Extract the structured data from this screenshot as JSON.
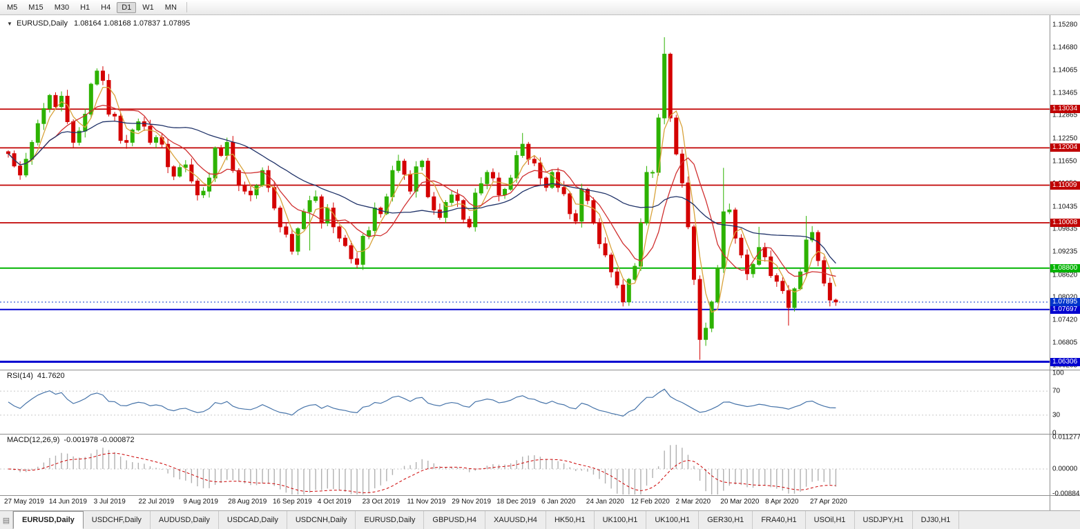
{
  "toolbar": {
    "timeframes": [
      "M5",
      "M15",
      "M30",
      "H1",
      "H4",
      "D1",
      "W1",
      "MN"
    ],
    "active": "D1"
  },
  "main_chart": {
    "collapse_icon": "▼",
    "symbol": "EURUSD,Daily",
    "ohlc": "1.08164 1.08168 1.07837 1.07895"
  },
  "price_axis": {
    "labels": [
      "1.15280",
      "1.14680",
      "1.14065",
      "1.13465",
      "1.12865",
      "1.12250",
      "1.11650",
      "1.11050",
      "1.10435",
      "1.09835",
      "1.09235",
      "1.08620",
      "1.08020",
      "1.07420",
      "1.06805",
      "1.06205"
    ]
  },
  "levels": [
    {
      "label": "1.13034",
      "value": 1.13034,
      "color": "#C00000",
      "width": 1.8
    },
    {
      "label": "1.12004",
      "value": 1.12004,
      "color": "#C00000",
      "width": 1.8
    },
    {
      "label": "1.11009",
      "value": 1.11009,
      "color": "#C00000",
      "width": 1.8
    },
    {
      "label": "1.10008",
      "value": 1.10008,
      "color": "#C00000",
      "width": 1.8
    },
    {
      "label": "1.08800",
      "value": 1.088,
      "color": "#00B400",
      "width": 2
    },
    {
      "label": "1.07697",
      "value": 1.07697,
      "color": "#0000D0",
      "width": 2
    },
    {
      "label": "1.06306",
      "value": 1.06306,
      "color": "#0000D0",
      "width": 3
    }
  ],
  "current_price": {
    "label": "1.07895",
    "value": 1.07895,
    "color": "#0033CC"
  },
  "rsi_panel": {
    "name": "RSI(14)",
    "value": "41.7620",
    "axis_labels": [
      "100",
      "70",
      "30",
      "0"
    ],
    "guide_levels": [
      70,
      30
    ],
    "line_color": "#4472A8"
  },
  "macd_panel": {
    "name": "MACD(12,26,9)",
    "values": "-0.001978 -0.000872",
    "axis_labels": [
      "0.011277",
      "0.00000",
      "-0.008845"
    ],
    "hist_color": "#B0B0B0",
    "signal_color": "#CC0000"
  },
  "time_axis": {
    "labels": [
      "27 May 2019",
      "14 Jun 2019",
      "3 Jul 2019",
      "22 Jul 2019",
      "9 Aug 2019",
      "28 Aug 2019",
      "16 Sep 2019",
      "4 Oct 2019",
      "23 Oct 2019",
      "11 Nov 2019",
      "29 Nov 2019",
      "18 Dec 2019",
      "6 Jan 2020",
      "24 Jan 2020",
      "12 Feb 2020",
      "2 Mar 2020",
      "20 Mar 2020",
      "8 Apr 2020",
      "27 Apr 2020"
    ]
  },
  "tabs": [
    {
      "label": "EURUSD,Daily",
      "active": true
    },
    {
      "label": "USDCHF,Daily",
      "active": false
    },
    {
      "label": "AUDUSD,Daily",
      "active": false
    },
    {
      "label": "USDCAD,Daily",
      "active": false
    },
    {
      "label": "USDCNH,Daily",
      "active": false
    },
    {
      "label": "EURUSD,Daily",
      "active": false
    },
    {
      "label": "GBPUSD,H4",
      "active": false
    },
    {
      "label": "XAUUSD,H4",
      "active": false
    },
    {
      "label": "HK50,H1",
      "active": false
    },
    {
      "label": "UK100,H1",
      "active": false
    },
    {
      "label": "UK100,H1",
      "active": false
    },
    {
      "label": "GER30,H1",
      "active": false
    },
    {
      "label": "FRA40,H1",
      "active": false
    },
    {
      "label": "USOil,H1",
      "active": false
    },
    {
      "label": "USDJPY,H1",
      "active": false
    },
    {
      "label": "DJ30,H1",
      "active": false
    }
  ],
  "icons": {
    "tab_list": "▤"
  },
  "chart_data": {
    "type": "candlestick",
    "symbol": "EURUSD",
    "timeframe": "Daily",
    "title": "EURUSD,Daily",
    "current_ohlc": {
      "open": 1.08164,
      "high": 1.08168,
      "low": 1.07837,
      "close": 1.07895
    },
    "x_range": [
      "27 May 2019",
      "7 May 2020"
    ],
    "y_axis_range": [
      1.06205,
      1.1528
    ],
    "grid": false,
    "first_open": 1.119,
    "closes": [
      1.1185,
      1.1152,
      1.1128,
      1.117,
      1.1215,
      1.1265,
      1.1305,
      1.134,
      1.131,
      1.1338,
      1.127,
      1.1215,
      1.1245,
      1.129,
      1.137,
      1.1405,
      1.138,
      1.129,
      1.1285,
      1.122,
      1.1215,
      1.1248,
      1.127,
      1.1258,
      1.1215,
      1.1228,
      1.121,
      1.115,
      1.1125,
      1.1148,
      1.1155,
      1.1112,
      1.1075,
      1.1085,
      1.112,
      1.12,
      1.118,
      1.1215,
      1.114,
      1.11,
      1.1085,
      1.1075,
      1.11,
      1.114,
      1.1095,
      1.104,
      1.099,
      1.097,
      1.0925,
      1.0985,
      1.103,
      1.106,
      1.107,
      1.1,
      1.104,
      1.099,
      1.096,
      1.094,
      1.0905,
      1.089,
      1.0965,
      1.098,
      1.104,
      1.1025,
      1.107,
      1.114,
      1.1165,
      1.113,
      1.1085,
      1.115,
      1.1165,
      1.107,
      1.1035,
      1.1015,
      1.1055,
      1.1075,
      1.106,
      1.101,
      1.099,
      1.108,
      1.1105,
      1.1135,
      1.112,
      1.1075,
      1.109,
      1.112,
      1.118,
      1.121,
      1.117,
      1.116,
      1.112,
      1.1095,
      1.1135,
      1.1095,
      1.1078,
      1.1025,
      1.1005,
      1.109,
      1.106,
      1.1,
      1.0945,
      1.0915,
      1.087,
      1.0835,
      1.079,
      1.085,
      1.0885,
      1.1,
      1.1135,
      1.1135,
      1.128,
      1.145,
      1.128,
      1.1184,
      1.1107,
      1.099,
      1.085,
      1.069,
      1.072,
      1.079,
      1.088,
      1.103,
      1.1035,
      1.096,
      1.0915,
      1.0865,
      1.089,
      1.0935,
      1.091,
      1.086,
      1.0845,
      1.082,
      1.0775,
      1.0825,
      1.087,
      1.0955,
      1.0975,
      1.09,
      1.084,
      1.0795,
      1.079
    ],
    "wick_overrides": {
      "15": {
        "high": 1.1412
      },
      "48": {
        "low": 1.0916
      },
      "51": {
        "low": 1.0927
      },
      "59": {
        "low": 1.0879
      },
      "87": {
        "high": 1.124
      },
      "104": {
        "low": 1.0778
      },
      "111": {
        "high": 1.1495
      },
      "117": {
        "low": 1.0636
      },
      "121": {
        "high": 1.1147
      },
      "127": {
        "high": 1.099
      },
      "132": {
        "low": 1.0727
      },
      "135": {
        "high": 1.1019
      }
    },
    "bull_color": "#2DB200",
    "bear_color": "#D40000",
    "moving_averages": [
      {
        "period": 4,
        "color": "#D8A23A"
      },
      {
        "period": 9,
        "color": "#D03030"
      },
      {
        "period": 28,
        "color": "#1F3268"
      }
    ],
    "rsi": {
      "period": 14,
      "current": 41.762
    },
    "macd": {
      "fast": 12,
      "slow": 26,
      "signal": 9,
      "macd_current": -0.001978,
      "signal_current": -0.000872,
      "axis_max": 0.011277,
      "axis_min": -0.008845
    },
    "horizontal_levels": [
      1.13034,
      1.12004,
      1.11009,
      1.10008,
      1.088,
      1.07697,
      1.06306
    ]
  }
}
